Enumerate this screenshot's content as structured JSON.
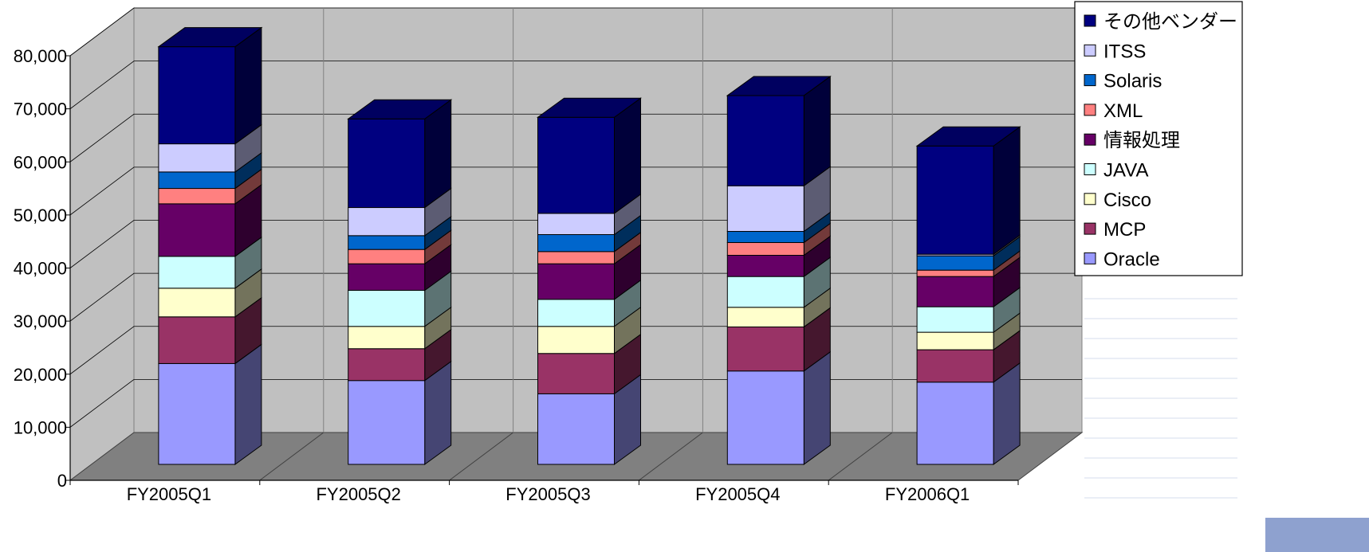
{
  "chart_data": {
    "type": "bar",
    "stacked": true,
    "three_d": true,
    "title": "",
    "xlabel": "",
    "ylabel": "",
    "ylim": [
      0,
      80000
    ],
    "y_ticks": [
      "0",
      "10,000",
      "20,000",
      "30,000",
      "40,000",
      "50,000",
      "60,000",
      "70,000",
      "80,000"
    ],
    "grid": true,
    "legend_position": "top-right",
    "categories": [
      "FY2005Q1",
      "FY2005Q2",
      "FY2005Q3",
      "FY2005Q4",
      "FY2006Q1"
    ],
    "series": [
      {
        "name": "Oracle",
        "color": "#9999ff",
        "values": [
          19000,
          15800,
          13300,
          17600,
          15500
        ]
      },
      {
        "name": "MCP",
        "color": "#993366",
        "values": [
          8800,
          6000,
          7600,
          8300,
          6100
        ]
      },
      {
        "name": "Cisco",
        "color": "#ffffcc",
        "values": [
          5400,
          4200,
          5100,
          3700,
          3300
        ]
      },
      {
        "name": "JAVA",
        "color": "#ccffff",
        "values": [
          6000,
          6800,
          5100,
          5800,
          4800
        ]
      },
      {
        "name": "情報処理",
        "color": "#660066",
        "values": [
          9900,
          5000,
          6700,
          4000,
          5700
        ]
      },
      {
        "name": "XML",
        "color": "#ff8080",
        "values": [
          2900,
          2700,
          2300,
          2400,
          1200
        ]
      },
      {
        "name": "Solaris",
        "color": "#0066cc",
        "values": [
          3100,
          2600,
          3200,
          2100,
          2700
        ]
      },
      {
        "name": "ITSS",
        "color": "#ccccff",
        "values": [
          5300,
          5300,
          4000,
          8600,
          300
        ]
      },
      {
        "name": "その他ベンダー",
        "color": "#000080",
        "values": [
          18300,
          16700,
          18100,
          17000,
          20400
        ]
      }
    ]
  },
  "legend_order": [
    "その他ベンダー",
    "ITSS",
    "Solaris",
    "XML",
    "情報処理",
    "JAVA",
    "Cisco",
    "MCP",
    "Oracle"
  ]
}
